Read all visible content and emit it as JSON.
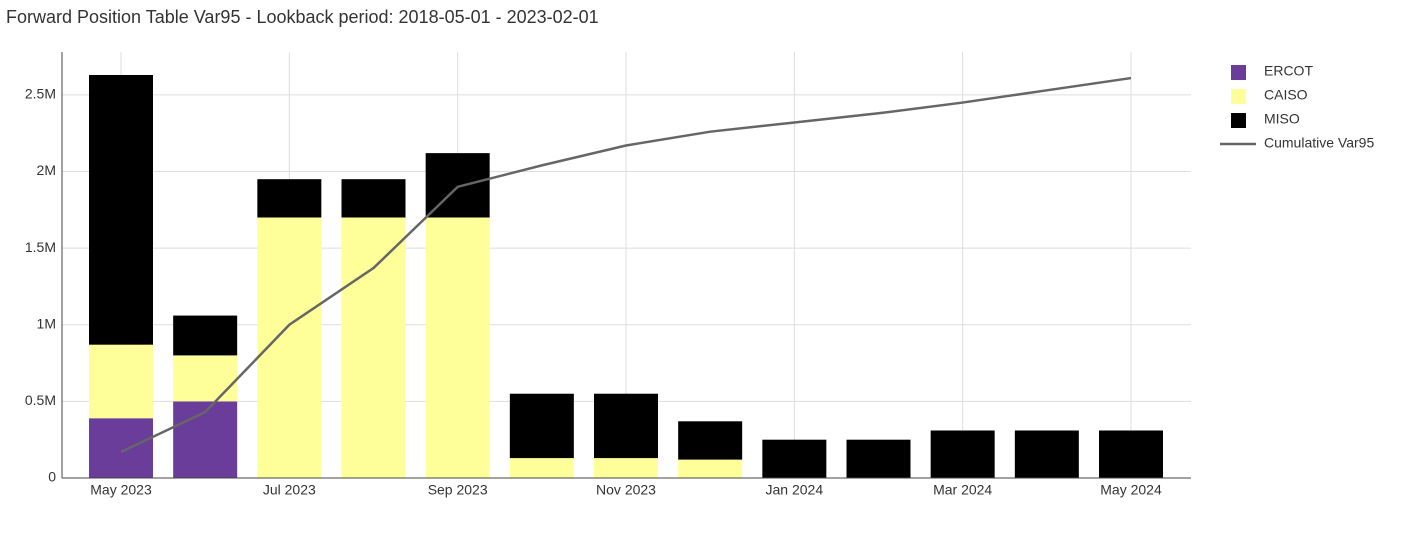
{
  "chart_data": {
    "type": "stacked_bar_line",
    "title": "Forward Position Table Var95 - Lookback period: 2018-05-01 - 2023-02-01",
    "categories": [
      "May 2023",
      null,
      "Jul 2023",
      null,
      "Sep 2023",
      null,
      "Nov 2023",
      null,
      "Jan 2024",
      null,
      "Mar 2024",
      null,
      "May 2024"
    ],
    "series": [
      {
        "name": "ERCOT",
        "color": "#6a3d9a",
        "kind": "bar",
        "values": [
          390000,
          500000,
          0,
          0,
          0,
          0,
          0,
          0,
          0,
          0,
          0,
          0,
          0
        ]
      },
      {
        "name": "CAISO",
        "color": "#ffff99",
        "kind": "bar",
        "values": [
          480000,
          300000,
          1700000,
          1700000,
          1700000,
          130000,
          130000,
          120000,
          0,
          0,
          0,
          0,
          0
        ]
      },
      {
        "name": "MISO",
        "color": "#000000",
        "kind": "bar",
        "values": [
          1760000,
          260000,
          250000,
          250000,
          420000,
          420000,
          420000,
          250000,
          250000,
          250000,
          310000,
          310000,
          310000
        ]
      },
      {
        "name": "Cumulative Var95",
        "color": "#666666",
        "kind": "line",
        "values": [
          170000,
          430000,
          1000000,
          1370000,
          1900000,
          2040000,
          2170000,
          2260000,
          2320000,
          2380000,
          2450000,
          2530000,
          2610000
        ]
      }
    ],
    "ylim": [
      0,
      2780000
    ],
    "yticks": [
      0,
      {
        "value": 500000,
        "label": "0.5M"
      },
      {
        "value": 1000000,
        "label": "1M"
      },
      {
        "value": 1500000,
        "label": "1.5M"
      },
      {
        "value": 2000000,
        "label": "2M"
      },
      {
        "value": 2500000,
        "label": "2.5M"
      }
    ],
    "grid": true,
    "legend": "right"
  }
}
